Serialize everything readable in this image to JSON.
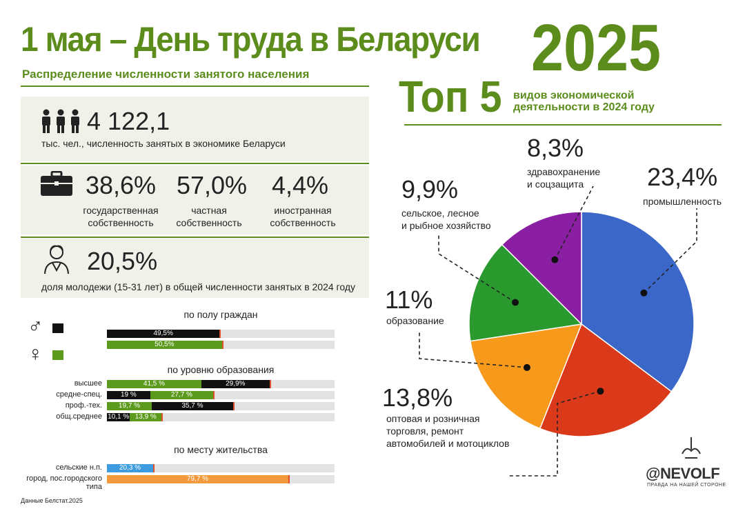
{
  "header": {
    "title": "1 мая – День труда в Беларуси",
    "year": "2025",
    "subtitle": "Распределение численности занятого населения",
    "top5": "Топ 5",
    "top5_sub_1": "видов экономической",
    "top5_sub_2": "деятельности в 2024 году"
  },
  "employed": {
    "value": "4 122,1",
    "label": "тыс. чел., численность занятых в экономике Беларуси"
  },
  "ownership": [
    {
      "pct": "38,6%",
      "l1": "государственная",
      "l2": "собственность",
      "color": "#2e7d4a"
    },
    {
      "pct": "57,0%",
      "l1": "частная",
      "l2": "собственность",
      "color": "#6aa520"
    },
    {
      "pct": "4,4%",
      "l1": "иностранная",
      "l2": "собственность",
      "color": "#c8201c"
    }
  ],
  "youth": {
    "value": "20,5%",
    "label": "доля молодежи (15-31 лет) в общей численности занятых в 2024 году"
  },
  "gender": {
    "title": "по полу граждан",
    "male_symbol": "♂",
    "female_symbol": "♀",
    "bars": [
      {
        "label": "49,5%",
        "value": 49.5,
        "color": "#111111"
      },
      {
        "label": "50,5%",
        "value": 50.5,
        "color": "#5b9a1c"
      }
    ]
  },
  "education": {
    "title": "по уровню образования",
    "rows": [
      {
        "name": "высшее",
        "segs": [
          {
            "label": "41,5 %",
            "value": 41.5,
            "color": "#5b9a1c"
          },
          {
            "label": "29,9%",
            "value": 29.9,
            "color": "#111111"
          }
        ]
      },
      {
        "name": "средне-спец.",
        "segs": [
          {
            "label": "19 %",
            "value": 19,
            "color": "#111111"
          },
          {
            "label": "27,7 %",
            "value": 27.7,
            "color": "#5b9a1c"
          }
        ]
      },
      {
        "name": "проф.-тех.",
        "segs": [
          {
            "label": "19,7 %",
            "value": 19.7,
            "color": "#5b9a1c"
          },
          {
            "label": "35,7 %",
            "value": 35.7,
            "color": "#111111"
          }
        ]
      },
      {
        "name": "общ.среднее",
        "segs": [
          {
            "label": "10,1 %",
            "value": 10.1,
            "color": "#111111"
          },
          {
            "label": "13,9 %",
            "value": 13.9,
            "color": "#5b9a1c"
          }
        ]
      }
    ]
  },
  "residence": {
    "title": "по месту жительства",
    "rows": [
      {
        "name": "сельские н.п.",
        "name2": "",
        "label": "20,3 %",
        "value": 20.3,
        "color": "#3d9be0"
      },
      {
        "name": "город, пос.городского",
        "name2": "типа",
        "label": "79,7 %",
        "value": 79.7,
        "color": "#f59a3c"
      }
    ]
  },
  "chart_data": {
    "type": "pie",
    "title": "Топ 5 видов экономической деятельности в 2024 году",
    "slices": [
      {
        "label_1": "промышленность",
        "label_2": "",
        "label_3": "",
        "pct": "23,4%",
        "value": 23.4,
        "color": "#3b67c9"
      },
      {
        "label_1": "оптовая и розничная",
        "label_2": "торговля, ремонт",
        "label_3": "автомобилей и мотоциклов",
        "pct": "13,8%",
        "value": 13.8,
        "color": "#db3a1a"
      },
      {
        "label_1": "образование",
        "label_2": "",
        "label_3": "",
        "pct": "11%",
        "value": 11,
        "color": "#f79a1c"
      },
      {
        "label_1": "сельское, лесное",
        "label_2": "и рыбное хозяйство",
        "label_3": "",
        "pct": "9,9%",
        "value": 9.9,
        "color": "#2a9a2e"
      },
      {
        "label_1": "здравохранение",
        "label_2": "и соцзащита",
        "label_3": "",
        "pct": "8,3%",
        "value": 8.3,
        "color": "#8b1fa3"
      }
    ]
  },
  "logo": {
    "name": "@NEVOLF",
    "tagline": "ПРАВДА НА НАШЕЙ СТОРОНЕ"
  },
  "source": "Данные Белстат.2025"
}
